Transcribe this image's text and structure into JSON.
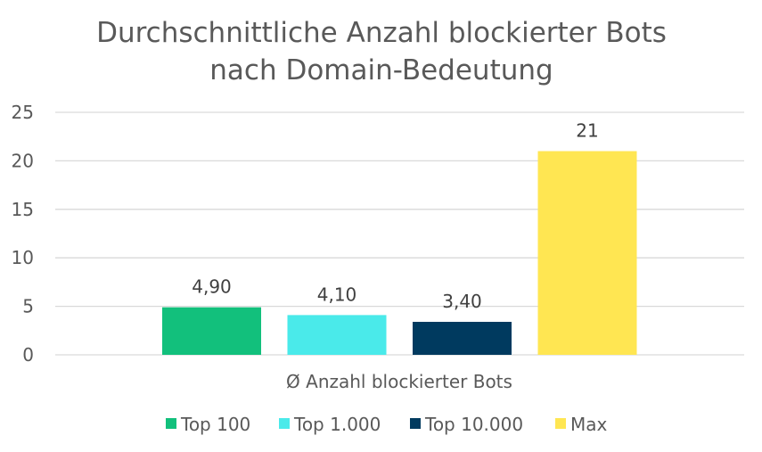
{
  "chart_data": {
    "type": "bar",
    "title": [
      "Durchschnittliche Anzahl blockierter Bots",
      "nach Domain-Bedeutung"
    ],
    "categories": [
      "Ø Anzahl blockierter Bots"
    ],
    "series": [
      {
        "name": "Top 100",
        "values": [
          4.9
        ],
        "label": "4,90",
        "color": "#12c07c"
      },
      {
        "name": "Top 1.000",
        "values": [
          4.1
        ],
        "label": "4,10",
        "color": "#4aeaea"
      },
      {
        "name": "Top 10.000",
        "values": [
          3.4
        ],
        "label": "3,40",
        "color": "#003a5f"
      },
      {
        "name": "Max",
        "values": [
          21
        ],
        "label": "21",
        "color": "#ffe652"
      }
    ],
    "ylim": [
      0,
      25
    ],
    "yticks": [
      0,
      5,
      10,
      15,
      20,
      25
    ],
    "grid": true,
    "legend": "bottom"
  }
}
